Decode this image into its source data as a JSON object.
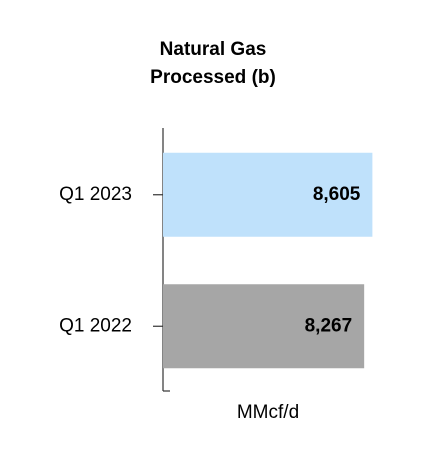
{
  "chart_data": {
    "type": "bar",
    "orientation": "horizontal",
    "title": "Natural Gas Processed (b)",
    "categories": [
      "Q1 2023",
      "Q1 2022"
    ],
    "values": [
      8605,
      8267
    ],
    "value_labels": [
      "8,605",
      "8,267"
    ],
    "colors": [
      "#bfe1fb",
      "#a6a6a6"
    ],
    "xlabel": "MMcf/d",
    "xlim": [
      0,
      9000
    ]
  }
}
